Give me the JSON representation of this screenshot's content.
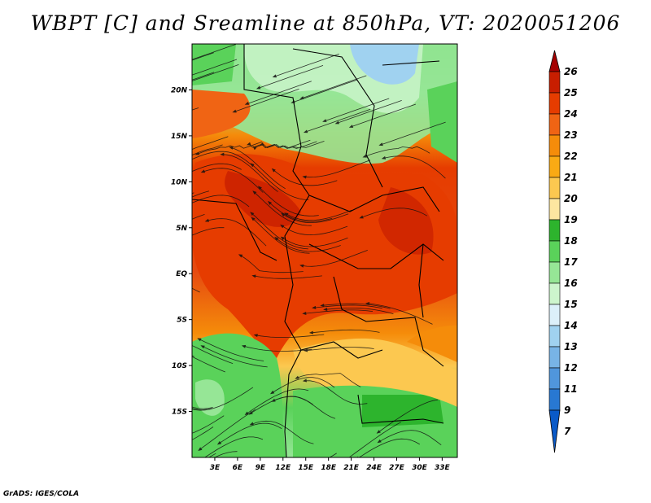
{
  "title": "WBPT [C] and Sreamline at 850hPa, VT: 2020051206",
  "credit": "GrADS: IGES/COLA",
  "map": {
    "lon_range": [
      0,
      35
    ],
    "lat_range": [
      -20,
      25
    ],
    "lon_ticks": [
      "3E",
      "6E",
      "9E",
      "12E",
      "15E",
      "18E",
      "21E",
      "24E",
      "27E",
      "30E",
      "33E"
    ],
    "lat_ticks": [
      "20N",
      "15N",
      "10N",
      "5N",
      "EQ",
      "5S",
      "10S",
      "15S"
    ]
  },
  "colorbar": {
    "labels": [
      "26",
      "25",
      "24",
      "23",
      "22",
      "21",
      "20",
      "19",
      "18",
      "17",
      "16",
      "15",
      "14",
      "13",
      "12",
      "11",
      "9",
      "7"
    ],
    "colors": [
      "#a50000",
      "#c81e00",
      "#e63c00",
      "#f06414",
      "#f58c0a",
      "#faaa14",
      "#fcc850",
      "#fde6a0",
      "#2db42d",
      "#5ad25a",
      "#96e696",
      "#cdf5cd",
      "#dcf0fa",
      "#a0d2f0",
      "#78b4e6",
      "#5096dc",
      "#2878d2",
      "#0a5ac8"
    ]
  }
}
